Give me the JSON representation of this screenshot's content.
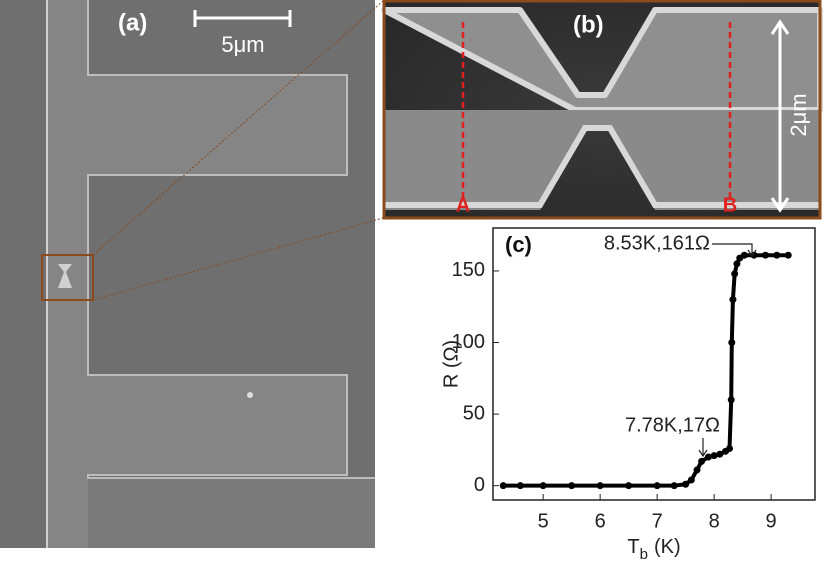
{
  "panels": {
    "a": {
      "label": "(a)",
      "scale_bar": "5μm"
    },
    "b": {
      "label": "(b)",
      "marker_a": "A",
      "marker_b": "B",
      "scale_bar": "2μm"
    }
  },
  "chart_data": {
    "type": "scatter",
    "label": "(c)",
    "xlabel": "T",
    "xlabel_sub": "b",
    "xlabel_unit": "(K)",
    "ylabel": "R (Ω)",
    "annotations": [
      "8.53K,161Ω",
      "7.78K,17Ω"
    ],
    "x": [
      4.3,
      4.6,
      5,
      5.5,
      6,
      6.5,
      7,
      7.3,
      7.5,
      7.6,
      7.7,
      7.78,
      7.9,
      8.0,
      8.1,
      8.2,
      8.27,
      8.3,
      8.31,
      8.33,
      8.36,
      8.4,
      8.45,
      8.53,
      8.7,
      8.9,
      9.1,
      9.3
    ],
    "values": [
      0,
      0,
      0,
      0,
      0,
      0,
      0,
      0,
      1,
      4,
      11,
      17,
      20,
      21,
      22,
      24,
      26,
      60,
      100,
      130,
      148,
      155,
      159,
      161,
      161,
      161,
      161,
      161
    ],
    "color": "#000000",
    "xlim": [
      4.12,
      9.77
    ],
    "xticks": [
      5,
      6,
      7,
      8,
      9
    ],
    "ylim": [
      -10,
      180
    ],
    "yticks": [
      0,
      50,
      100,
      150
    ]
  }
}
